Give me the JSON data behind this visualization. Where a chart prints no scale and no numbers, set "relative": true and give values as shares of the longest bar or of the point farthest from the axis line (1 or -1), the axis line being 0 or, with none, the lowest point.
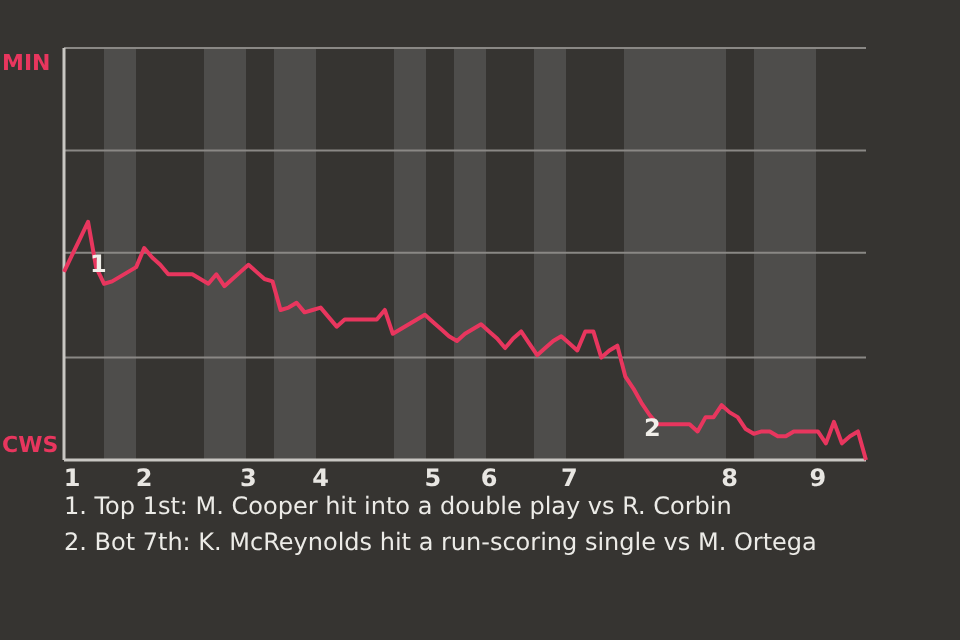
{
  "chart_data": {
    "type": "line",
    "relative": true,
    "line_style": "solid",
    "ref_lines": [
      {
        "axis": "y",
        "value": 0.43,
        "color": "#8a8885"
      },
      {
        "axis": "y",
        "value": 0.87,
        "color": "#8a8885"
      },
      {
        "axis": "y",
        "value": 1.3,
        "color": "#8a8885"
      },
      {
        "axis": "y",
        "value": 1.73,
        "color": "#8a8885"
      }
    ],
    "categories": [
      null,
      "1",
      null,
      null,
      null,
      null,
      null,
      null,
      null,
      null,
      "2",
      null,
      null,
      null,
      null,
      null,
      null,
      null,
      null,
      null,
      null,
      null,
      null,
      "3",
      null,
      null,
      null,
      null,
      null,
      null,
      null,
      null,
      "4",
      null,
      null,
      null,
      null,
      null,
      null,
      null,
      null,
      null,
      null,
      null,
      null,
      null,
      "5",
      null,
      null,
      null,
      null,
      null,
      null,
      "6",
      null,
      null,
      null,
      null,
      null,
      null,
      null,
      null,
      null,
      "7",
      null,
      null,
      null,
      null,
      null,
      null,
      null,
      null,
      null,
      null,
      null,
      null,
      null,
      null,
      null,
      null,
      null,
      null,
      null,
      "8",
      null,
      null,
      null,
      null,
      null,
      null,
      null,
      null,
      null,
      null,
      "9",
      null,
      null,
      null,
      null,
      null,
      null
    ],
    "series": [
      {
        "color": "#e8365e",
        "values": [
          0.79,
          0.86,
          0.93,
          1,
          0.81,
          0.74,
          0.75,
          0.77,
          0.79,
          0.81,
          0.89,
          0.85,
          0.82,
          0.78,
          0.78,
          0.78,
          0.78,
          0.76,
          0.74,
          0.78,
          0.73,
          0.76,
          0.79,
          0.82,
          0.79,
          0.76,
          0.75,
          0.63,
          0.64,
          0.66,
          0.62,
          0.63,
          0.64,
          0.6,
          0.56,
          0.59,
          0.59,
          0.59,
          0.59,
          0.59,
          0.63,
          0.53,
          0.55,
          0.57,
          0.59,
          0.61,
          0.58,
          0.55,
          0.52,
          0.5,
          0.53,
          0.55,
          0.57,
          0.54,
          0.51,
          0.47,
          0.51,
          0.54,
          0.49,
          0.44,
          0.47,
          0.5,
          0.52,
          0.49,
          0.46,
          0.54,
          0.54,
          0.43,
          0.46,
          0.48,
          0.35,
          0.3,
          0.24,
          0.19,
          0.15,
          0.15,
          0.15,
          0.15,
          0.15,
          0.12,
          0.18,
          0.18,
          0.23,
          0.2,
          0.18,
          0.13,
          0.11,
          0.12,
          0.12,
          0.1,
          0.1,
          0.12,
          0.12,
          0.12,
          0.12,
          0.07,
          0.16,
          0.07,
          0.1,
          0.12,
          0
        ]
      }
    ],
    "annotations": [
      "MIN",
      "CWS",
      "1",
      "2",
      "1. Top 1st: M. Cooper hit into a double play vs R. Corbin",
      "2. Bot 7th: K. McReynolds hit a run-scoring single vs M. Ortega"
    ]
  }
}
